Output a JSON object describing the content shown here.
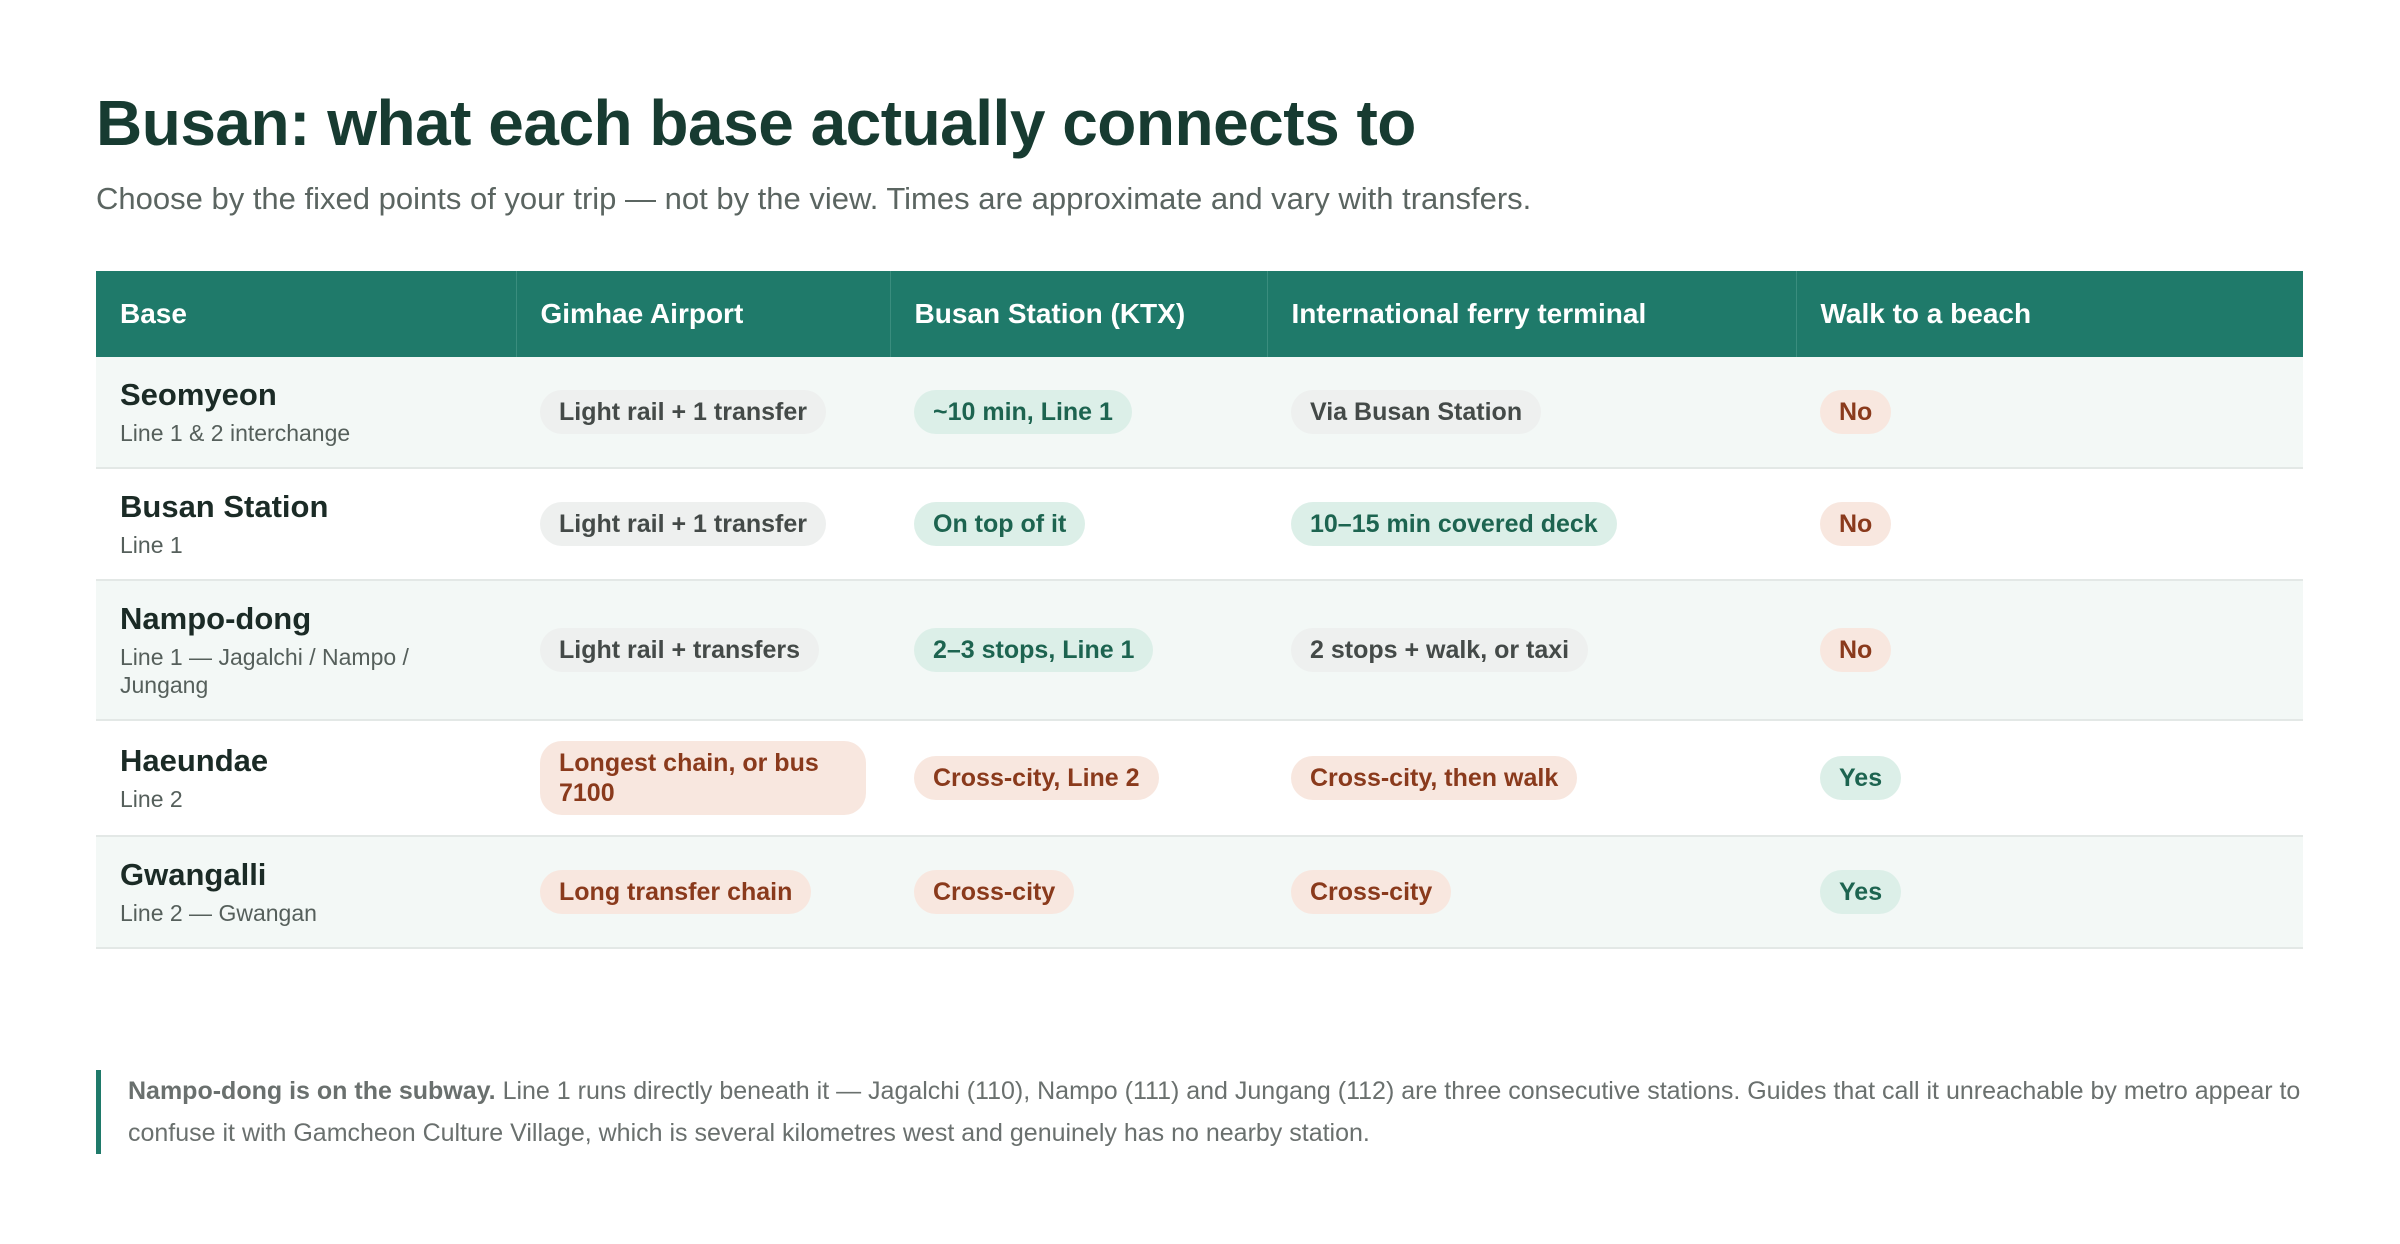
{
  "header": {
    "title": "Busan: what each base actually connects to",
    "subtitle": "Choose by the fixed points of your trip — not by the view. Times are approximate and vary with transfers."
  },
  "table": {
    "columns": [
      "Base",
      "Gimhae Airport",
      "Busan Station (KTX)",
      "International ferry terminal",
      "Walk to a beach"
    ],
    "rows": [
      {
        "base": "Seomyeon",
        "sub": "Line 1 & 2 interchange",
        "cells": [
          {
            "text": "Light rail + 1 transfer",
            "tone": "neutral"
          },
          {
            "text": "~10 min, Line 1",
            "tone": "good"
          },
          {
            "text": "Via Busan Station",
            "tone": "neutral"
          },
          {
            "text": "No",
            "tone": "bad"
          }
        ]
      },
      {
        "base": "Busan Station",
        "sub": "Line 1",
        "cells": [
          {
            "text": "Light rail + 1 transfer",
            "tone": "neutral"
          },
          {
            "text": "On top of it",
            "tone": "good"
          },
          {
            "text": "10–15 min covered deck",
            "tone": "good"
          },
          {
            "text": "No",
            "tone": "bad"
          }
        ]
      },
      {
        "base": "Nampo-dong",
        "sub": "Line 1 — Jagalchi / Nampo / Jungang",
        "cells": [
          {
            "text": "Light rail + transfers",
            "tone": "neutral"
          },
          {
            "text": "2–3 stops, Line 1",
            "tone": "good"
          },
          {
            "text": "2 stops + walk, or taxi",
            "tone": "neutral"
          },
          {
            "text": "No",
            "tone": "bad"
          }
        ]
      },
      {
        "base": "Haeundae",
        "sub": "Line 2",
        "cells": [
          {
            "text": "Longest chain, or bus 7100",
            "tone": "bad"
          },
          {
            "text": "Cross-city, Line 2",
            "tone": "bad"
          },
          {
            "text": "Cross-city, then walk",
            "tone": "bad"
          },
          {
            "text": "Yes",
            "tone": "good"
          }
        ]
      },
      {
        "base": "Gwangalli",
        "sub": "Line 2 — Gwangan",
        "cells": [
          {
            "text": "Long transfer chain",
            "tone": "bad"
          },
          {
            "text": "Cross-city",
            "tone": "bad"
          },
          {
            "text": "Cross-city",
            "tone": "bad"
          },
          {
            "text": "Yes",
            "tone": "good"
          }
        ]
      }
    ]
  },
  "note": {
    "lead": "Nampo-dong is on the subway.",
    "text": "Line 1 runs directly beneath it — Jagalchi (110), Nampo (111) and Jungang (112) are three consecutive stations. Guides that call it unreachable by metro appear to confuse it with Gamcheon Culture Village, which is several kilometres west and genuinely has no nearby station."
  }
}
